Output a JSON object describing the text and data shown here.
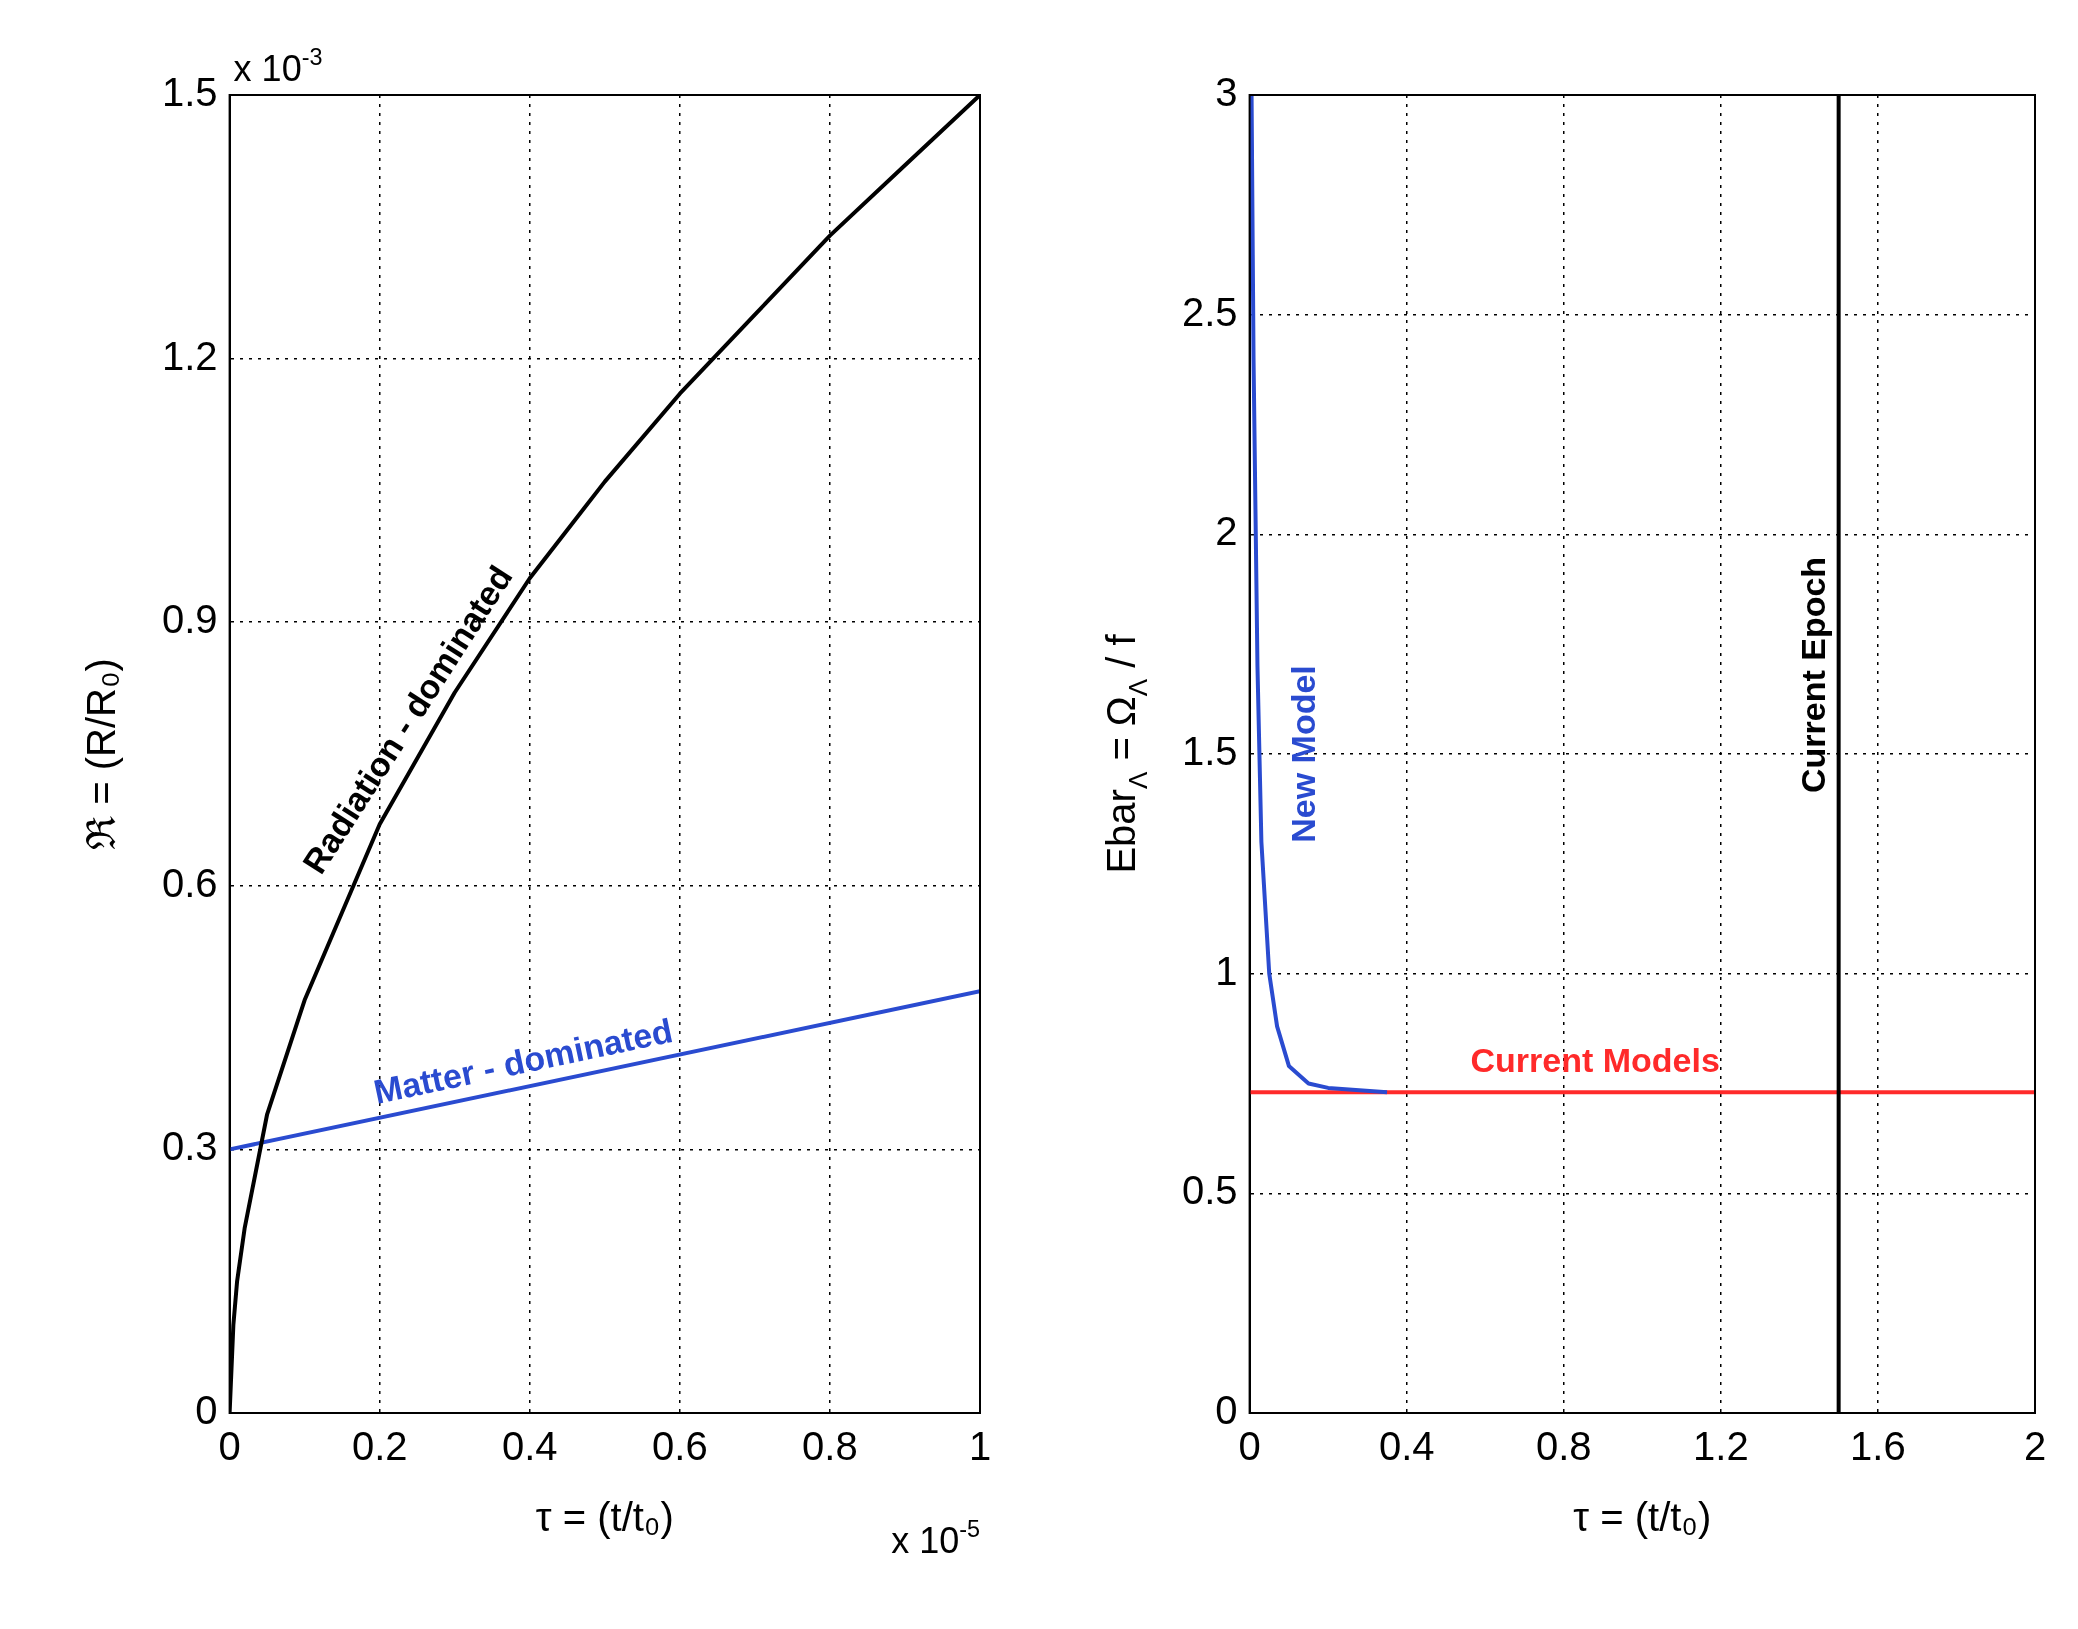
{
  "chart_data": [
    {
      "type": "line",
      "xlabel": "τ = (t/t₀)",
      "ylabel": "ℜ = (R/R₀)",
      "xlim": [
        0,
        1
      ],
      "xticks": [
        0,
        0.2,
        0.4,
        0.6,
        0.8,
        1
      ],
      "ylim": [
        0,
        1.5
      ],
      "yticks": [
        0,
        0.3,
        0.6,
        0.9,
        1.2,
        1.5
      ],
      "grid": true,
      "annotations": [
        "x 10$^{-3}$",
        "x 10$^{-5}$"
      ],
      "series": [
        {
          "name": "Radiation - dominated",
          "color": "#000000",
          "x": [
            0,
            0.005,
            0.01,
            0.02,
            0.05,
            0.1,
            0.2,
            0.3,
            0.4,
            0.5,
            0.6,
            0.7,
            0.8,
            0.9,
            1
          ],
          "values": [
            0,
            0.1,
            0.15,
            0.21,
            0.34,
            0.47,
            0.67,
            0.82,
            0.95,
            1.06,
            1.16,
            1.25,
            1.34,
            1.42,
            1.5
          ]
        },
        {
          "name": "Matter - dominated",
          "color": "#2a4bd0",
          "x": [
            0,
            1
          ],
          "values": [
            0.3,
            0.48
          ]
        }
      ]
    },
    {
      "type": "line",
      "xlabel": "τ = (t/t₀)",
      "ylabel": "Ebar$_{Λ}$ = Ω$_{Λ}$ / f",
      "xlim": [
        0,
        2
      ],
      "xticks": [
        0,
        0.4,
        0.8,
        1.2,
        1.6,
        2
      ],
      "ylim": [
        0,
        3
      ],
      "yticks": [
        0,
        0.5,
        1,
        1.5,
        2,
        2.5,
        3
      ],
      "grid": true,
      "ref_lines": [
        {
          "axis": "x",
          "value": 1.5,
          "label": "Current Epoch",
          "color": "#000000"
        }
      ],
      "series": [
        {
          "name": "New Model",
          "color": "#2a4bd0",
          "x": [
            0.005,
            0.01,
            0.02,
            0.03,
            0.05,
            0.07,
            0.1,
            0.15,
            0.2,
            0.35
          ],
          "values": [
            3,
            2.4,
            1.7,
            1.3,
            1.0,
            0.88,
            0.79,
            0.75,
            0.74,
            0.73
          ]
        },
        {
          "name": "Current Models",
          "color": "#ff2a2a",
          "x": [
            0,
            2
          ],
          "values": [
            0.73,
            0.73
          ]
        }
      ]
    }
  ]
}
